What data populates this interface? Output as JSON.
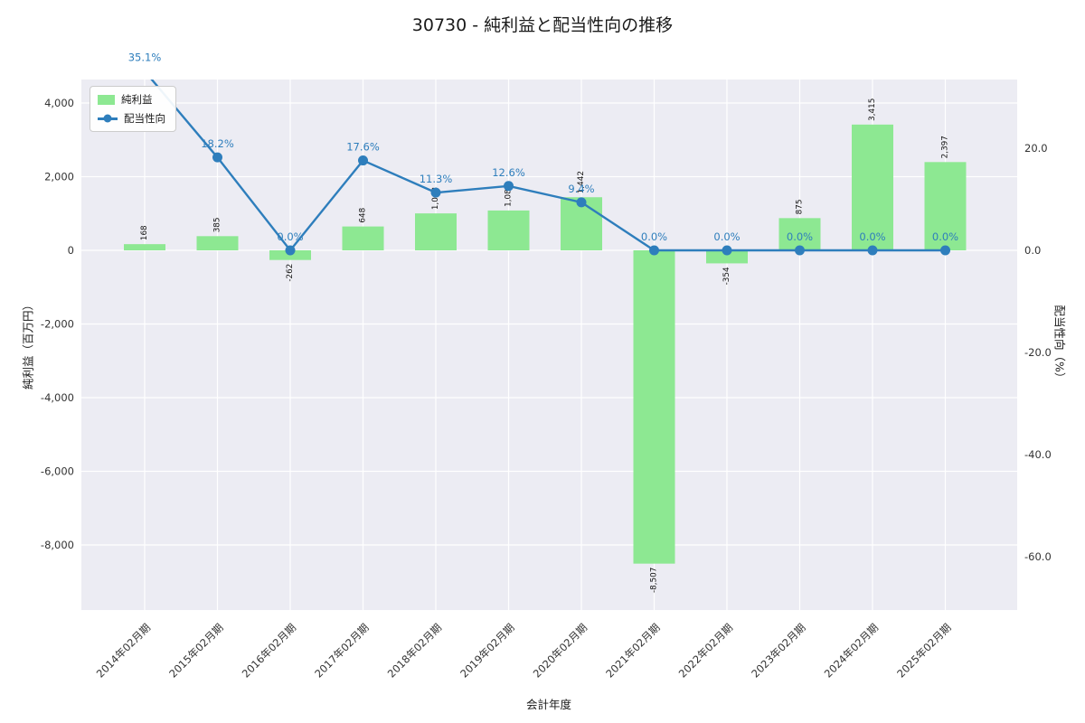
{
  "chart_data": {
    "type": "bar+line",
    "title": "30730 - 純利益と配当性向の推移",
    "xlabel": "会計年度",
    "ylabel_left": "純利益（百万円）",
    "ylabel_right": "配当性向（%）",
    "categories": [
      "2014年02月期",
      "2015年02月期",
      "2016年02月期",
      "2017年02月期",
      "2018年02月期",
      "2019年02月期",
      "2020年02月期",
      "2021年02月期",
      "2022年02月期",
      "2023年02月期",
      "2024年02月期",
      "2025年02月期"
    ],
    "series": [
      {
        "name": "純利益",
        "type": "bar",
        "color": "#8DE892",
        "values": [
          168,
          385,
          -262,
          648,
          1003,
          1082,
          1442,
          -8507,
          -354,
          875,
          3415,
          2397
        ],
        "labels": [
          "168",
          "385",
          "-262",
          "648",
          "1,003",
          "1,082",
          "1,442",
          "-8,507",
          "-354",
          "875",
          "3,415",
          "2,397"
        ]
      },
      {
        "name": "配当性向",
        "type": "line",
        "color": "#2E7EBC",
        "values": [
          35.1,
          18.2,
          0.0,
          17.6,
          11.3,
          12.6,
          9.4,
          0.0,
          0.0,
          0.0,
          0.0,
          0.0
        ],
        "labels": [
          "35.1%",
          "18.2%",
          "0.0%",
          "17.6%",
          "11.3%",
          "12.6%",
          "9.4%",
          "0.0%",
          "0.0%",
          "0.0%",
          "0.0%",
          "0.0%"
        ]
      }
    ],
    "left_ticks": [
      4000,
      2000,
      0,
      -2000,
      -4000,
      -6000,
      -8000
    ],
    "left_tick_labels": [
      "4,000",
      "2,000",
      "0",
      "-2,000",
      "-4,000",
      "-6,000",
      "-8,000"
    ],
    "right_ticks": [
      20,
      0,
      -20,
      -40,
      -60
    ],
    "right_tick_labels": [
      "20.0",
      "0.0",
      "-20.0",
      "-40.0",
      "-60.0"
    ],
    "left_range": [
      -9760,
      4640
    ],
    "right_range": [
      -70.4,
      33.4
    ],
    "legend": {
      "position": "upper-left",
      "items": [
        "純利益",
        "配当性向"
      ]
    },
    "grid": true,
    "plot_bg": "#ECECF3",
    "grid_color": "#FFFFFF",
    "tick_color": "#333333",
    "bar_label_color": "#111111"
  }
}
